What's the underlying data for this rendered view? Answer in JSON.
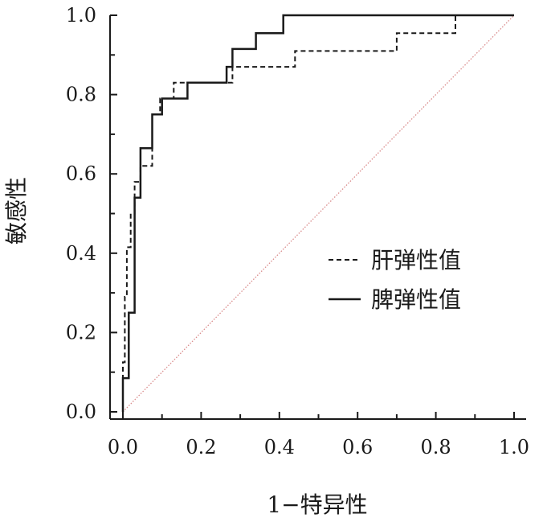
{
  "chart_data": {
    "type": "line",
    "title": "",
    "xlabel": "1−特异性",
    "ylabel": "敏感性",
    "xlim": [
      0,
      1
    ],
    "ylim": [
      0,
      1
    ],
    "xticks": [
      "0.0",
      "0.2",
      "0.4",
      "0.6",
      "0.8",
      "1.0"
    ],
    "yticks": [
      "0.0",
      "0.2",
      "0.4",
      "0.6",
      "0.8",
      "1.0"
    ],
    "grid": false,
    "legend": "center-right",
    "reference_line": {
      "from": [
        0,
        0
      ],
      "to": [
        1,
        1
      ],
      "color": "#d98a8a",
      "style": "dotted"
    },
    "series": [
      {
        "name": "肝弹性值",
        "style": "dashed",
        "color": "#1a1a1a",
        "points": [
          [
            0,
            0
          ],
          [
            0,
            0.125
          ],
          [
            0.005,
            0.125
          ],
          [
            0.005,
            0.29
          ],
          [
            0.01,
            0.29
          ],
          [
            0.01,
            0.415
          ],
          [
            0.02,
            0.415
          ],
          [
            0.02,
            0.5
          ],
          [
            0.03,
            0.5
          ],
          [
            0.03,
            0.58
          ],
          [
            0.045,
            0.58
          ],
          [
            0.045,
            0.62
          ],
          [
            0.075,
            0.62
          ],
          [
            0.075,
            0.75
          ],
          [
            0.095,
            0.75
          ],
          [
            0.095,
            0.79
          ],
          [
            0.13,
            0.79
          ],
          [
            0.13,
            0.83
          ],
          [
            0.28,
            0.83
          ],
          [
            0.28,
            0.87
          ],
          [
            0.44,
            0.87
          ],
          [
            0.44,
            0.91
          ],
          [
            0.7,
            0.91
          ],
          [
            0.7,
            0.955
          ],
          [
            0.85,
            0.955
          ],
          [
            0.85,
            1.0
          ],
          [
            1.0,
            1.0
          ]
        ]
      },
      {
        "name": "脾弹性值",
        "style": "solid",
        "color": "#1a1a1a",
        "points": [
          [
            0,
            0
          ],
          [
            0,
            0.085
          ],
          [
            0.015,
            0.085
          ],
          [
            0.015,
            0.25
          ],
          [
            0.03,
            0.25
          ],
          [
            0.03,
            0.54
          ],
          [
            0.045,
            0.54
          ],
          [
            0.045,
            0.665
          ],
          [
            0.075,
            0.665
          ],
          [
            0.075,
            0.75
          ],
          [
            0.1,
            0.75
          ],
          [
            0.1,
            0.79
          ],
          [
            0.165,
            0.79
          ],
          [
            0.165,
            0.83
          ],
          [
            0.265,
            0.83
          ],
          [
            0.265,
            0.87
          ],
          [
            0.28,
            0.87
          ],
          [
            0.28,
            0.915
          ],
          [
            0.34,
            0.915
          ],
          [
            0.34,
            0.955
          ],
          [
            0.41,
            0.955
          ],
          [
            0.41,
            1.0
          ],
          [
            1.0,
            1.0
          ]
        ]
      }
    ]
  }
}
